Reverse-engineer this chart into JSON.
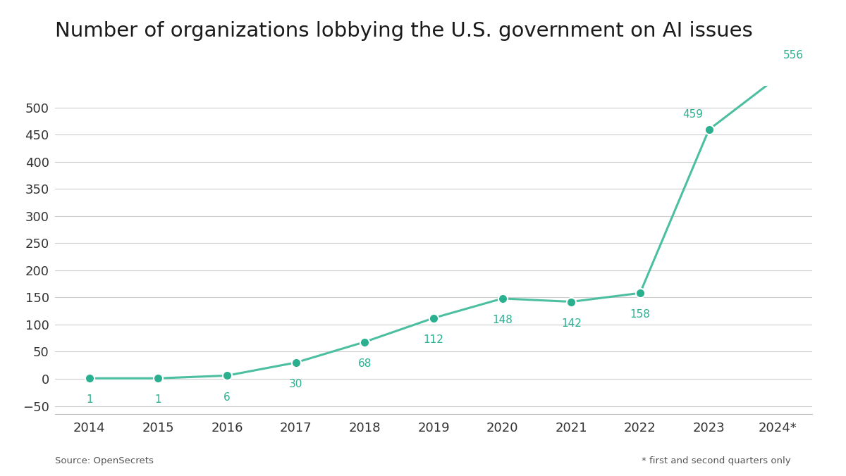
{
  "years": [
    "2014",
    "2015",
    "2016",
    "2017",
    "2018",
    "2019",
    "2020",
    "2021",
    "2022",
    "2023",
    "2024*"
  ],
  "values": [
    1,
    1,
    6,
    30,
    68,
    112,
    148,
    142,
    158,
    459,
    556
  ],
  "line_color": "#4bbfa0",
  "marker_color": "#2aaf8f",
  "title": "Number of organizations lobbying the U.S. government on AI issues",
  "title_fontsize": 21,
  "source_text": "Source: OpenSecrets",
  "note_text": "* first and second quarters only",
  "ylim": [
    -65,
    540
  ],
  "yticks": [
    -50,
    0,
    50,
    100,
    150,
    200,
    250,
    300,
    350,
    400,
    450,
    500
  ],
  "background_color": "#ffffff",
  "grid_color": "#cccccc",
  "label_color": "#2aaf8f",
  "axis_label_color": "#333333",
  "label_fontsize": 11,
  "tick_fontsize": 13,
  "marker_size": 90
}
